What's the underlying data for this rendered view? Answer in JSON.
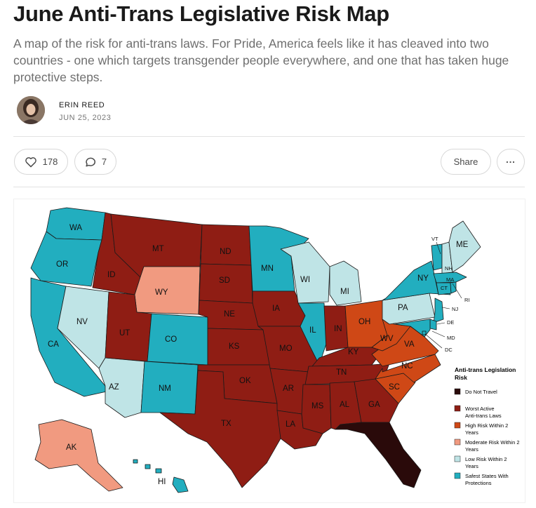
{
  "post": {
    "title": "June Anti-Trans Legislative Risk Map",
    "subtitle": "A map of the risk for anti-trans laws. For Pride, America feels like it has cleaved into two countries - one which targets transgender people everywhere, and one that has taken huge protective steps.",
    "author": "ERIN REED",
    "date": "JUN 25, 2023"
  },
  "actions": {
    "likes": "178",
    "comments": "7",
    "share_label": "Share",
    "more_label": "..."
  },
  "colors": {
    "do_not_travel": "#2a0a0a",
    "worst": "#8f1d14",
    "high": "#cf4816",
    "moderate": "#f19a80",
    "low": "#bfe4e6",
    "safest": "#22aebf"
  },
  "map": {
    "legend": {
      "title": "Anti-trans Legislation Risk",
      "items": [
        {
          "key": "do_not_travel",
          "label": "Do Not Travel"
        },
        {
          "key": "worst",
          "label": "Worst Active Anti-trans Laws"
        },
        {
          "key": "high",
          "label": "High Risk Within 2 Years"
        },
        {
          "key": "moderate",
          "label": "Moderate Risk Within 2 Years"
        },
        {
          "key": "low",
          "label": "Low Risk Within 2 Years"
        },
        {
          "key": "safest",
          "label": "Safest States With Protections"
        }
      ]
    },
    "states": {
      "WA": "safest",
      "OR": "safest",
      "CA": "safest",
      "NV": "low",
      "AZ": "low",
      "ID": "worst",
      "MT": "worst",
      "WY": "moderate",
      "UT": "worst",
      "CO": "safest",
      "NM": "safest",
      "ND": "worst",
      "SD": "worst",
      "NE": "worst",
      "KS": "worst",
      "OK": "worst",
      "TX": "worst",
      "MN": "safest",
      "IA": "worst",
      "MO": "worst",
      "AR": "worst",
      "LA": "worst",
      "WI": "low",
      "IL": "safest",
      "MI": "low",
      "IN": "worst",
      "OH": "high",
      "KY": "worst",
      "TN": "worst",
      "MS": "worst",
      "AL": "worst",
      "GA": "worst",
      "FL": "do_not_travel",
      "SC": "high",
      "NC": "high",
      "VA": "high",
      "WV": "high",
      "PA": "low",
      "NY": "safest",
      "VT": "safest",
      "NH": "low",
      "ME": "low",
      "MA": "safest",
      "CT": "safest",
      "RI": "safest",
      "NJ": "safest",
      "DE": "safest",
      "MD": "safest",
      "DC": "safest",
      "AK": "moderate",
      "HI": "safest"
    }
  }
}
